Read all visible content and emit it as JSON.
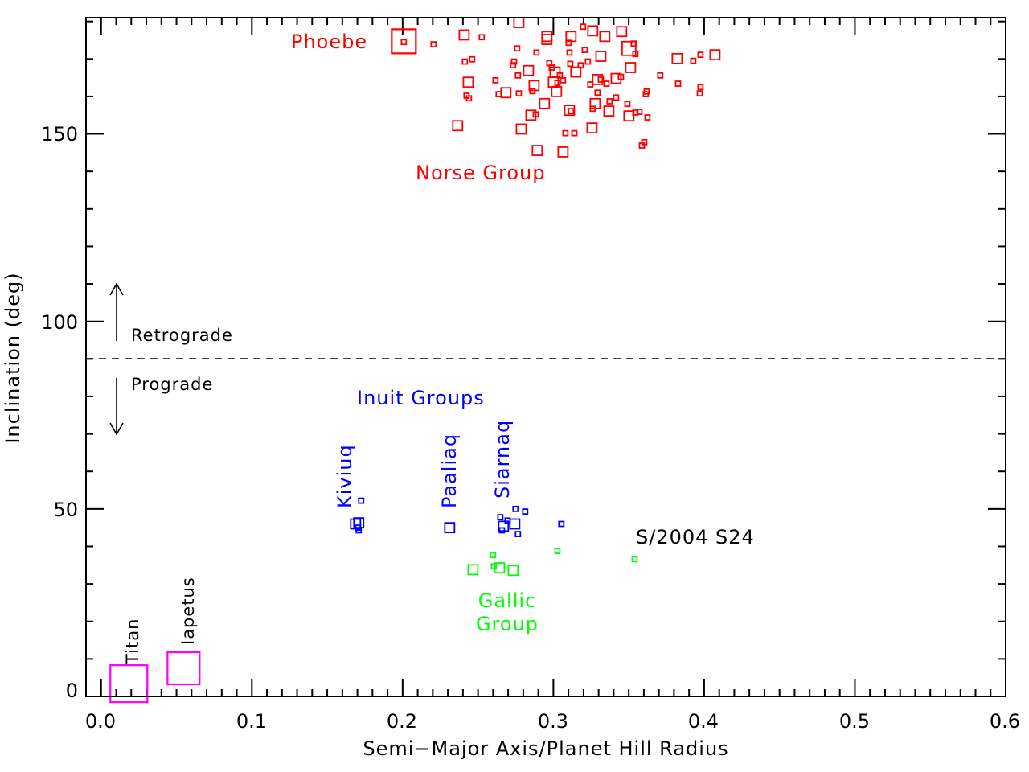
{
  "chart_data": {
    "type": "scatter",
    "xlabel": "Semi−Major Axis/Planet Hill Radius",
    "ylabel": "Inclination (deg)",
    "xlim": [
      -0.01,
      0.6
    ],
    "ylim": [
      0,
      181
    ],
    "x_ticks": [
      "0.0",
      "0.1",
      "0.2",
      "0.3",
      "0.4",
      "0.5",
      "0.6"
    ],
    "y_ticks": [
      "0",
      "50",
      "100",
      "150"
    ],
    "grid": false,
    "reference_line": {
      "y": 90,
      "style": "dashed"
    },
    "marker": "open-square",
    "point_format": [
      "x",
      "y",
      "relative_symbol_size"
    ],
    "series": [
      {
        "group": "norse",
        "color": "#ff0000",
        "points": [
          [
            0.2008,
            174.7,
            5
          ],
          [
            0.2008,
            174.5,
            1
          ],
          [
            0.2205,
            173.9,
            1
          ],
          [
            0.2408,
            176.4,
            2
          ],
          [
            0.2525,
            175.8,
            1
          ],
          [
            0.2413,
            169.3,
            1
          ],
          [
            0.2461,
            169.9,
            1
          ],
          [
            0.2435,
            163.8,
            2
          ],
          [
            0.2424,
            160.2,
            1
          ],
          [
            0.244,
            159.5,
            1
          ],
          [
            0.2365,
            152.2,
            2
          ],
          [
            0.2616,
            164.3,
            1
          ],
          [
            0.2637,
            160.6,
            1
          ],
          [
            0.2685,
            161.0,
            2
          ],
          [
            0.2771,
            179.7,
            2
          ],
          [
            0.276,
            172.8,
            1
          ],
          [
            0.2739,
            169.3,
            1
          ],
          [
            0.2733,
            168.3,
            1
          ],
          [
            0.2765,
            165.6,
            1
          ],
          [
            0.2771,
            160.8,
            1
          ],
          [
            0.2835,
            166.9,
            2
          ],
          [
            0.2872,
            162.9,
            2
          ],
          [
            0.2861,
            161.4,
            1
          ],
          [
            0.2787,
            151.3,
            2
          ],
          [
            0.2851,
            155.0,
            2
          ],
          [
            0.2883,
            155.2,
            1
          ],
          [
            0.2941,
            158.1,
            2
          ],
          [
            0.2893,
            145.6,
            2
          ],
          [
            0.2957,
            176.0,
            2
          ],
          [
            0.2957,
            175.2,
            2
          ],
          [
            0.2888,
            171.7,
            1
          ],
          [
            0.2973,
            168.9,
            1
          ],
          [
            0.2989,
            167.7,
            1
          ],
          [
            0.3011,
            166.5,
            2
          ],
          [
            0.3027,
            163.6,
            1
          ],
          [
            0.3,
            163.8,
            2
          ],
          [
            0.3043,
            165.6,
            1
          ],
          [
            0.3021,
            161.3,
            2
          ],
          [
            0.3064,
            164.3,
            1
          ],
          [
            0.3117,
            176.0,
            2
          ],
          [
            0.3101,
            174.3,
            1
          ],
          [
            0.3107,
            171.7,
            1
          ],
          [
            0.3112,
            168.7,
            1
          ],
          [
            0.308,
            150.2,
            1
          ],
          [
            0.3064,
            145.2,
            2
          ],
          [
            0.3139,
            150.2,
            1
          ],
          [
            0.3107,
            156.3,
            2
          ],
          [
            0.3117,
            156.1,
            1
          ],
          [
            0.3149,
            166.5,
            2
          ],
          [
            0.3181,
            168.3,
            1
          ],
          [
            0.3208,
            172.4,
            1
          ],
          [
            0.3197,
            178.6,
            1
          ],
          [
            0.3261,
            177.5,
            2
          ],
          [
            0.3341,
            176.0,
            2
          ],
          [
            0.3315,
            170.7,
            2
          ],
          [
            0.3229,
            169.3,
            1
          ],
          [
            0.3245,
            163.2,
            1
          ],
          [
            0.3293,
            164.5,
            2
          ],
          [
            0.3277,
            158.1,
            2
          ],
          [
            0.3261,
            156.7,
            1
          ],
          [
            0.3293,
            161.0,
            1
          ],
          [
            0.3315,
            164.5,
            1
          ],
          [
            0.3352,
            163.4,
            1
          ],
          [
            0.3373,
            158.7,
            1
          ],
          [
            0.3368,
            156.1,
            2
          ],
          [
            0.3256,
            151.6,
            2
          ],
          [
            0.3416,
            164.8,
            2
          ],
          [
            0.3448,
            165.2,
            1
          ],
          [
            0.3416,
            159.7,
            1
          ],
          [
            0.3453,
            177.3,
            2
          ],
          [
            0.3501,
            172.8,
            3
          ],
          [
            0.3491,
            158.0,
            1
          ],
          [
            0.3512,
            167.7,
            2
          ],
          [
            0.3544,
            171.3,
            1
          ],
          [
            0.3533,
            174.1,
            1
          ],
          [
            0.3501,
            154.8,
            2
          ],
          [
            0.3544,
            155.7,
            1
          ],
          [
            0.3571,
            155.9,
            1
          ],
          [
            0.3624,
            154.4,
            1
          ],
          [
            0.3619,
            161.3,
            1
          ],
          [
            0.3613,
            160.6,
            1
          ],
          [
            0.3603,
            147.8,
            1
          ],
          [
            0.3587,
            146.9,
            1
          ],
          [
            0.3709,
            165.6,
            1
          ],
          [
            0.3821,
            170.1,
            2
          ],
          [
            0.3827,
            163.4,
            1
          ],
          [
            0.3928,
            169.5,
            1
          ],
          [
            0.3976,
            171.1,
            1
          ],
          [
            0.4072,
            171.1,
            2
          ],
          [
            0.3971,
            160.8,
            1
          ],
          [
            0.3976,
            162.5,
            1
          ]
        ]
      },
      {
        "group": "inuit",
        "color": "#0000ff",
        "points": [
          [
            0.1725,
            52.2,
            1
          ],
          [
            0.1688,
            46.0,
            2
          ],
          [
            0.1709,
            46.3,
            2
          ],
          [
            0.1704,
            45.0,
            1
          ],
          [
            0.1709,
            44.3,
            1
          ],
          [
            0.2312,
            45.0,
            2
          ],
          [
            0.2669,
            45.4,
            2
          ],
          [
            0.2648,
            47.8,
            1
          ],
          [
            0.2659,
            44.3,
            1
          ],
          [
            0.2744,
            46.0,
            2
          ],
          [
            0.2749,
            50.0,
            1
          ],
          [
            0.2813,
            49.3,
            1
          ],
          [
            0.2765,
            43.3,
            1
          ],
          [
            0.2696,
            46.9,
            1
          ],
          [
            0.3053,
            46.0,
            1
          ]
        ]
      },
      {
        "group": "gallic",
        "color": "#00ff00",
        "points": [
          [
            0.2467,
            33.8,
            2
          ],
          [
            0.26,
            37.7,
            1
          ],
          [
            0.2605,
            34.7,
            1
          ],
          [
            0.2643,
            34.3,
            2
          ],
          [
            0.2733,
            33.6,
            2
          ],
          [
            0.3027,
            38.8,
            1
          ],
          [
            0.3539,
            36.6,
            1
          ]
        ]
      },
      {
        "group": "regular",
        "color": "#ff00ff",
        "points": [
          [
            0.0184,
            3.4,
            8
          ],
          [
            0.0547,
            7.5,
            7
          ]
        ]
      }
    ],
    "annotations": {
      "phoebe": "Phoebe",
      "norse": "Norse Group",
      "inuit": "Inuit Groups",
      "kiviuq": "Kiviuq",
      "paaliaq": "Paaliaq",
      "siarnaq": "Siarnaq",
      "s2004s24": "S/2004 S24",
      "gallic_1": "Gallic",
      "gallic_2": "Group",
      "titan": "Titan",
      "iapetus": "Iapetus",
      "retrograde": "Retrograde",
      "prograde": "Prograde"
    }
  }
}
